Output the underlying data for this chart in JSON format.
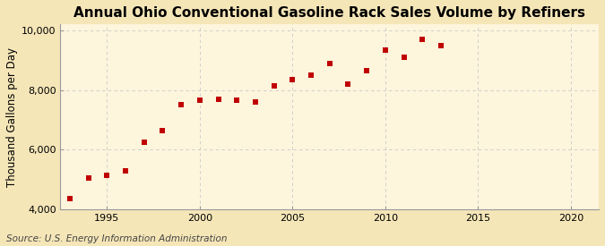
{
  "title": "Annual Ohio Conventional Gasoline Rack Sales Volume by Refiners",
  "ylabel": "Thousand Gallons per Day",
  "source": "Source: U.S. Energy Information Administration",
  "background_color": "#f5e6b8",
  "plot_bg_color": "#fdf5dc",
  "marker_color": "#c00000",
  "years": [
    1993,
    1994,
    1995,
    1996,
    1997,
    1998,
    1999,
    2000,
    2001,
    2002,
    2003,
    2004,
    2005,
    2006,
    2007,
    2008,
    2009,
    2010,
    2011,
    2012,
    2013
  ],
  "values": [
    4350,
    5050,
    5150,
    5300,
    6250,
    6650,
    7500,
    7650,
    7700,
    7650,
    7600,
    8150,
    8350,
    8500,
    8900,
    8200,
    8650,
    9350,
    9100,
    9700,
    9500
  ],
  "xlim": [
    1992.5,
    2021.5
  ],
  "ylim": [
    4000,
    10200
  ],
  "xticks": [
    1995,
    2000,
    2005,
    2010,
    2015,
    2020
  ],
  "yticks": [
    4000,
    6000,
    8000,
    10000
  ],
  "ytick_labels": [
    "4,000",
    "6,000",
    "8,000",
    "10,000"
  ],
  "grid_color": "#c8c8c8",
  "title_fontsize": 11,
  "label_fontsize": 8.5,
  "tick_fontsize": 8,
  "source_fontsize": 7.5
}
